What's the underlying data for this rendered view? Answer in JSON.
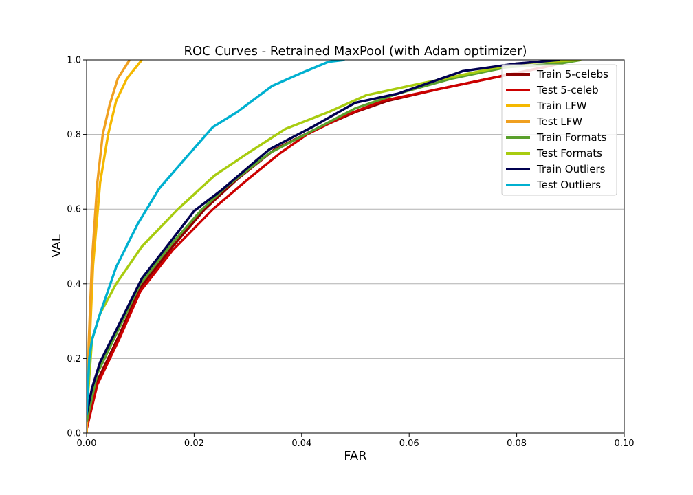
{
  "chart_data": {
    "type": "line",
    "title": "ROC Curves - Retrained MaxPool (with Adam optimizer)",
    "xlabel": "FAR",
    "ylabel": "VAL",
    "xlim": [
      0,
      0.1
    ],
    "ylim": [
      0,
      1.0
    ],
    "xticks": [
      "0.00",
      "0.02",
      "0.04",
      "0.06",
      "0.08",
      "0.10"
    ],
    "yticks": [
      "0.0",
      "0.2",
      "0.4",
      "0.6",
      "0.8",
      "1.0"
    ],
    "grid": "horizontal",
    "legend_position": "top-right",
    "series": [
      {
        "name": "Train 5-celebs",
        "color": "#8b0000",
        "x": [
          0,
          0.002,
          0.006,
          0.01,
          0.016,
          0.022,
          0.028,
          0.035,
          0.042,
          0.05,
          0.056,
          0.065,
          0.075,
          0.085,
          0.091
        ],
        "y": [
          0.02,
          0.14,
          0.26,
          0.39,
          0.5,
          0.6,
          0.68,
          0.76,
          0.81,
          0.86,
          0.89,
          0.92,
          0.95,
          0.98,
          1.0
        ]
      },
      {
        "name": "Test 5-celeb",
        "color": "#cc0000",
        "x": [
          0,
          0.002,
          0.006,
          0.01,
          0.016,
          0.0235,
          0.03,
          0.036,
          0.041,
          0.048,
          0.055,
          0.065,
          0.075,
          0.085,
          0.089
        ],
        "y": [
          0.01,
          0.13,
          0.25,
          0.38,
          0.49,
          0.6,
          0.68,
          0.75,
          0.8,
          0.85,
          0.89,
          0.92,
          0.95,
          0.98,
          1.0
        ]
      },
      {
        "name": "Train LFW",
        "color": "#f5b800",
        "x": [
          0,
          0.0005,
          0.0012,
          0.0025,
          0.004,
          0.0055,
          0.0075,
          0.01,
          0.0103
        ],
        "y": [
          0.0,
          0.22,
          0.45,
          0.67,
          0.8,
          0.89,
          0.95,
          0.995,
          1.0
        ]
      },
      {
        "name": "Test LFW",
        "color": "#f0a020",
        "x": [
          0,
          0.0004,
          0.001,
          0.002,
          0.003,
          0.0043,
          0.0058,
          0.008
        ],
        "y": [
          0.0,
          0.24,
          0.46,
          0.67,
          0.8,
          0.88,
          0.95,
          1.0
        ]
      },
      {
        "name": "Train Formats",
        "color": "#5aa02c",
        "x": [
          0,
          0.002,
          0.006,
          0.01,
          0.016,
          0.0215,
          0.026,
          0.034,
          0.042,
          0.05,
          0.058,
          0.068,
          0.078,
          0.088,
          0.092
        ],
        "y": [
          0.03,
          0.16,
          0.28,
          0.4,
          0.51,
          0.6,
          0.66,
          0.75,
          0.81,
          0.87,
          0.91,
          0.95,
          0.98,
          0.99,
          1.0
        ]
      },
      {
        "name": "Test Formats",
        "color": "#a8cc10",
        "x": [
          0,
          0.001,
          0.0025,
          0.0055,
          0.0103,
          0.017,
          0.0238,
          0.03,
          0.037,
          0.045,
          0.052,
          0.06,
          0.07,
          0.08,
          0.092
        ],
        "y": [
          0.05,
          0.25,
          0.32,
          0.4,
          0.5,
          0.6,
          0.69,
          0.75,
          0.815,
          0.86,
          0.905,
          0.93,
          0.96,
          0.99,
          1.0
        ]
      },
      {
        "name": "Train Outliers",
        "color": "#000050",
        "x": [
          0,
          0.001,
          0.0025,
          0.006,
          0.0103,
          0.016,
          0.02,
          0.025,
          0.034,
          0.042,
          0.05,
          0.058,
          0.07,
          0.08,
          0.088
        ],
        "y": [
          0.05,
          0.12,
          0.19,
          0.29,
          0.415,
          0.52,
          0.595,
          0.65,
          0.76,
          0.82,
          0.885,
          0.91,
          0.97,
          0.99,
          1.0
        ]
      },
      {
        "name": "Test Outliers",
        "color": "#00b0d0",
        "x": [
          0,
          0.0005,
          0.001,
          0.0025,
          0.0055,
          0.0095,
          0.0135,
          0.018,
          0.0235,
          0.028,
          0.0345,
          0.04,
          0.045,
          0.048
        ],
        "y": [
          0.05,
          0.2,
          0.25,
          0.32,
          0.445,
          0.56,
          0.655,
          0.73,
          0.82,
          0.86,
          0.93,
          0.965,
          0.995,
          1.0
        ]
      }
    ]
  }
}
